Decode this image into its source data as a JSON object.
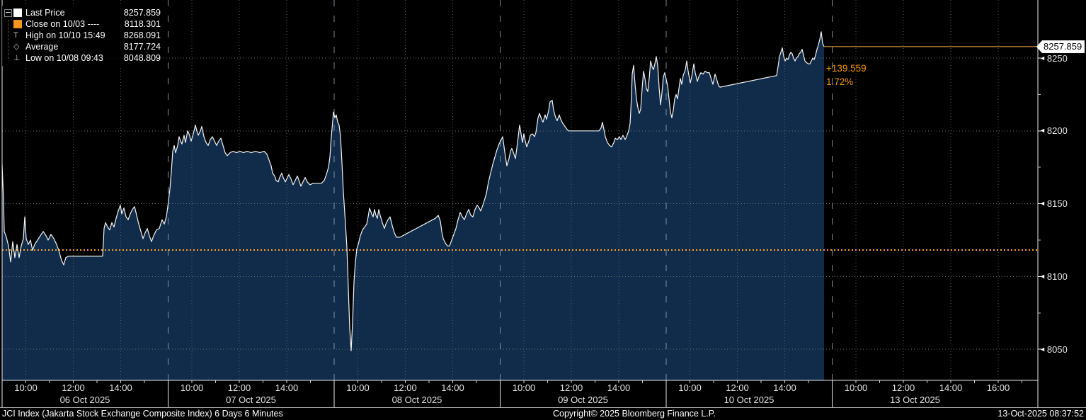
{
  "legend": {
    "items": [
      {
        "label": "Last Price",
        "value": "8257.859",
        "icon": "last-price-swatch",
        "swatch_color": "#ffffff"
      },
      {
        "label": "Close on 10/03 ----",
        "value": "8118.301",
        "icon": "close-swatch",
        "swatch_color": "#f7941d"
      },
      {
        "label": "High on 10/10 15:49",
        "value": "8268.091",
        "icon": "high-marker-icon",
        "glyph": "T"
      },
      {
        "label": "Average",
        "value": "8177.724",
        "icon": "average-marker-icon",
        "glyph": "◇"
      },
      {
        "label": "Low on 10/08 09:43",
        "value": "8048.809",
        "icon": "low-marker-icon",
        "glyph": "⊥"
      }
    ]
  },
  "annotation": {
    "change": "+139.559",
    "percent": "1.72%"
  },
  "flag": {
    "value": "8257.859"
  },
  "footer": {
    "left": "JCI Index (Jakarta Stock Exchange Composite Index) 6 Days 6 Minutes",
    "center": "Copyright© 2025 Bloomberg Finance L.P.",
    "right": "13-Oct-2025 08:37:52"
  },
  "colors": {
    "background": "#000000",
    "area_fill": "#112c4a",
    "price_line": "#f2f4f6",
    "close_dotted": "#ffa028",
    "last_price_line": "#d4913c",
    "annotation_orange": "#f79500",
    "h_grid": "#6b6f75",
    "v_grid": "#4e5a64",
    "day_boundary": "#92a2b4",
    "axis_white": "#e8e8e8",
    "legend_orange_swatch": "#f7941d"
  },
  "chart_data": {
    "type": "area",
    "title": "JCI Index (Jakarta Stock Exchange Composite Index) 6 Days 6 Minutes",
    "legend_position": "top-left",
    "grid": true,
    "ylim": [
      8028,
      8290
    ],
    "y_ticks": [
      8250,
      8200,
      8150,
      8100,
      8050
    ],
    "y_minor_ticks": [
      8225,
      8175,
      8125,
      8075
    ],
    "close_line_value": 8118.301,
    "stats": {
      "last_price": 8257.859,
      "close_10_03": 8118.301,
      "high_10_10_1549": 8268.091,
      "average": 8177.724,
      "low_10_08_0943": 8048.809,
      "net_change": 139.559,
      "pct_change": 1.72
    },
    "x_axis": {
      "days": [
        {
          "date": "06 Oct 2025",
          "times": [
            "10:00",
            "12:00",
            "14:00"
          ]
        },
        {
          "date": "07 Oct 2025",
          "times": [
            "10:00",
            "12:00",
            "14:00"
          ]
        },
        {
          "date": "08 Oct 2025",
          "times": [
            "10:00",
            "12:00",
            "14:00"
          ]
        },
        {
          "date": "09 Oct 2025",
          "times": [
            "10:00",
            "12:00",
            "14:00"
          ]
        },
        {
          "date": "10 Oct 2025",
          "times": [
            "10:00",
            "12:00",
            "14:00"
          ]
        },
        {
          "date": "13 Oct 2025",
          "times": [
            "10:00",
            "12:00",
            "14:00",
            "16:00"
          ]
        }
      ],
      "session_hours": "09:00-16:00"
    },
    "x_unit": "pixels from plot left edge; each trading day = 234.5px = 7 hours",
    "points": [
      [
        0,
        8177
      ],
      [
        2,
        8152
      ],
      [
        3,
        8131
      ],
      [
        6,
        8127
      ],
      [
        9,
        8121
      ],
      [
        12,
        8110
      ],
      [
        15,
        8124
      ],
      [
        18,
        8113
      ],
      [
        21,
        8122
      ],
      [
        24,
        8113
      ],
      [
        27,
        8121
      ],
      [
        30,
        8126
      ],
      [
        32,
        8141
      ],
      [
        34,
        8126
      ],
      [
        37,
        8122
      ],
      [
        40,
        8125
      ],
      [
        43,
        8118
      ],
      [
        46,
        8122
      ],
      [
        50,
        8125
      ],
      [
        54,
        8128
      ],
      [
        58,
        8131
      ],
      [
        62,
        8128
      ],
      [
        65,
        8125
      ],
      [
        69,
        8129
      ],
      [
        73,
        8126
      ],
      [
        77,
        8122
      ],
      [
        80,
        8118
      ],
      [
        84,
        8111
      ],
      [
        87,
        8108
      ],
      [
        90,
        8113
      ],
      [
        94,
        8114
      ],
      [
        142,
        8114
      ],
      [
        144,
        8133
      ],
      [
        146,
        8137
      ],
      [
        149,
        8134
      ],
      [
        152,
        8132
      ],
      [
        155,
        8137
      ],
      [
        158,
        8134
      ],
      [
        161,
        8140
      ],
      [
        164,
        8145
      ],
      [
        167,
        8149
      ],
      [
        169,
        8143
      ],
      [
        172,
        8147
      ],
      [
        175,
        8141
      ],
      [
        178,
        8139
      ],
      [
        181,
        8143
      ],
      [
        184,
        8146
      ],
      [
        187,
        8148
      ],
      [
        190,
        8142
      ],
      [
        193,
        8136
      ],
      [
        196,
        8131
      ],
      [
        199,
        8126
      ],
      [
        202,
        8130
      ],
      [
        205,
        8133
      ],
      [
        208,
        8128
      ],
      [
        211,
        8124
      ],
      [
        214,
        8128
      ],
      [
        218,
        8132
      ],
      [
        222,
        8133
      ],
      [
        226,
        8139
      ],
      [
        229,
        8136
      ],
      [
        232,
        8141
      ],
      [
        234,
        8148
      ],
      [
        237,
        8160
      ],
      [
        239,
        8172
      ],
      [
        241,
        8186
      ],
      [
        243,
        8190
      ],
      [
        245,
        8185
      ],
      [
        248,
        8190
      ],
      [
        250,
        8196
      ],
      [
        252,
        8193
      ],
      [
        254,
        8191
      ],
      [
        257,
        8197
      ],
      [
        259,
        8192
      ],
      [
        262,
        8200
      ],
      [
        264,
        8198
      ],
      [
        267,
        8193
      ],
      [
        270,
        8198
      ],
      [
        273,
        8204
      ],
      [
        275,
        8200
      ],
      [
        277,
        8197
      ],
      [
        280,
        8200
      ],
      [
        282,
        8203
      ],
      [
        285,
        8196
      ],
      [
        288,
        8192
      ],
      [
        291,
        8190
      ],
      [
        294,
        8194
      ],
      [
        297,
        8196
      ],
      [
        300,
        8193
      ],
      [
        303,
        8190
      ],
      [
        306,
        8193
      ],
      [
        309,
        8195
      ],
      [
        312,
        8190
      ],
      [
        315,
        8185
      ],
      [
        318,
        8183
      ],
      [
        322,
        8185
      ],
      [
        326,
        8186
      ],
      [
        331,
        8185
      ],
      [
        336,
        8186
      ],
      [
        341,
        8185
      ],
      [
        346,
        8186
      ],
      [
        352,
        8185
      ],
      [
        358,
        8186
      ],
      [
        364,
        8185
      ],
      [
        370,
        8186
      ],
      [
        374,
        8184
      ],
      [
        377,
        8180
      ],
      [
        380,
        8176
      ],
      [
        382,
        8171
      ],
      [
        385,
        8169
      ],
      [
        387,
        8166
      ],
      [
        390,
        8165
      ],
      [
        392,
        8168
      ],
      [
        395,
        8171
      ],
      [
        397,
        8168
      ],
      [
        400,
        8165
      ],
      [
        402,
        8167
      ],
      [
        405,
        8170
      ],
      [
        408,
        8167
      ],
      [
        411,
        8163
      ],
      [
        414,
        8166
      ],
      [
        417,
        8169
      ],
      [
        420,
        8165
      ],
      [
        422,
        8162
      ],
      [
        425,
        8165
      ],
      [
        428,
        8168
      ],
      [
        431,
        8165
      ],
      [
        435,
        8163
      ],
      [
        439,
        8164
      ],
      [
        445,
        8164
      ],
      [
        451,
        8164
      ],
      [
        455,
        8166
      ],
      [
        458,
        8170
      ],
      [
        461,
        8175
      ],
      [
        463,
        8182
      ],
      [
        465,
        8196
      ],
      [
        467,
        8207
      ],
      [
        468,
        8213
      ],
      [
        470,
        8209
      ],
      [
        472,
        8211
      ],
      [
        474,
        8206
      ],
      [
        476,
        8204
      ],
      [
        478,
        8196
      ],
      [
        480,
        8178
      ],
      [
        482,
        8158
      ],
      [
        485,
        8136
      ],
      [
        487,
        8120
      ],
      [
        489,
        8092
      ],
      [
        491,
        8064
      ],
      [
        493,
        8049
      ],
      [
        495,
        8068
      ],
      [
        497,
        8096
      ],
      [
        499,
        8110
      ],
      [
        501,
        8119
      ],
      [
        503,
        8122
      ],
      [
        506,
        8128
      ],
      [
        509,
        8132
      ],
      [
        512,
        8134
      ],
      [
        515,
        8136
      ],
      [
        517,
        8141
      ],
      [
        519,
        8147
      ],
      [
        522,
        8143
      ],
      [
        524,
        8141
      ],
      [
        526,
        8146
      ],
      [
        528,
        8142
      ],
      [
        530,
        8140
      ],
      [
        532,
        8146
      ],
      [
        534,
        8142
      ],
      [
        537,
        8137
      ],
      [
        540,
        8133
      ],
      [
        542,
        8136
      ],
      [
        545,
        8139
      ],
      [
        548,
        8141
      ],
      [
        551,
        8135
      ],
      [
        554,
        8130
      ],
      [
        557,
        8127
      ],
      [
        562,
        8127
      ],
      [
        612,
        8140
      ],
      [
        616,
        8142
      ],
      [
        619,
        8138
      ],
      [
        621,
        8131
      ],
      [
        623,
        8126
      ],
      [
        626,
        8123
      ],
      [
        629,
        8121
      ],
      [
        632,
        8121
      ],
      [
        635,
        8125
      ],
      [
        638,
        8129
      ],
      [
        641,
        8133
      ],
      [
        644,
        8139
      ],
      [
        647,
        8144
      ],
      [
        650,
        8141
      ],
      [
        653,
        8139
      ],
      [
        656,
        8143
      ],
      [
        659,
        8146
      ],
      [
        662,
        8142
      ],
      [
        665,
        8141
      ],
      [
        668,
        8146
      ],
      [
        671,
        8149
      ],
      [
        674,
        8147
      ],
      [
        676,
        8145
      ],
      [
        679,
        8149
      ],
      [
        681,
        8152
      ],
      [
        684,
        8157
      ],
      [
        687,
        8165
      ],
      [
        690,
        8171
      ],
      [
        693,
        8177
      ],
      [
        696,
        8182
      ],
      [
        699,
        8187
      ],
      [
        702,
        8191
      ],
      [
        705,
        8194
      ],
      [
        707,
        8196
      ],
      [
        709,
        8189
      ],
      [
        711,
        8182
      ],
      [
        713,
        8176
      ],
      [
        716,
        8181
      ],
      [
        718,
        8186
      ],
      [
        720,
        8188
      ],
      [
        723,
        8184
      ],
      [
        725,
        8181
      ],
      [
        727,
        8188
      ],
      [
        729,
        8196
      ],
      [
        731,
        8204
      ],
      [
        733,
        8198
      ],
      [
        735,
        8192
      ],
      [
        737,
        8198
      ],
      [
        739,
        8193
      ],
      [
        741,
        8189
      ],
      [
        744,
        8193
      ],
      [
        746,
        8197
      ],
      [
        749,
        8198
      ],
      [
        752,
        8196
      ],
      [
        754,
        8199
      ],
      [
        757,
        8209
      ],
      [
        759,
        8212
      ],
      [
        762,
        8208
      ],
      [
        764,
        8206
      ],
      [
        767,
        8211
      ],
      [
        769,
        8208
      ],
      [
        772,
        8214
      ],
      [
        774,
        8220
      ],
      [
        777,
        8221
      ],
      [
        779,
        8214
      ],
      [
        782,
        8209
      ],
      [
        784,
        8207
      ],
      [
        787,
        8211
      ],
      [
        789,
        8208
      ],
      [
        792,
        8205
      ],
      [
        795,
        8203
      ],
      [
        798,
        8201
      ],
      [
        800,
        8200
      ],
      [
        843,
        8200
      ],
      [
        846,
        8202
      ],
      [
        848,
        8206
      ],
      [
        850,
        8201
      ],
      [
        852,
        8196
      ],
      [
        855,
        8192
      ],
      [
        858,
        8190
      ],
      [
        861,
        8189
      ],
      [
        864,
        8192
      ],
      [
        866,
        8195
      ],
      [
        869,
        8194
      ],
      [
        872,
        8196
      ],
      [
        874,
        8194
      ],
      [
        877,
        8197
      ],
      [
        880,
        8194
      ],
      [
        882,
        8196
      ],
      [
        885,
        8200
      ],
      [
        887,
        8205
      ],
      [
        889,
        8224
      ],
      [
        890,
        8239
      ],
      [
        892,
        8245
      ],
      [
        894,
        8232
      ],
      [
        896,
        8222
      ],
      [
        898,
        8216
      ],
      [
        900,
        8212
      ],
      [
        902,
        8215
      ],
      [
        904,
        8229
      ],
      [
        906,
        8241
      ],
      [
        908,
        8236
      ],
      [
        910,
        8229
      ],
      [
        912,
        8227
      ],
      [
        914,
        8236
      ],
      [
        916,
        8248
      ],
      [
        918,
        8244
      ],
      [
        920,
        8242
      ],
      [
        922,
        8246
      ],
      [
        924,
        8251
      ],
      [
        926,
        8245
      ],
      [
        928,
        8230
      ],
      [
        930,
        8218
      ],
      [
        932,
        8226
      ],
      [
        934,
        8237
      ],
      [
        936,
        8240
      ],
      [
        940,
        8231
      ],
      [
        942,
        8222
      ],
      [
        944,
        8213
      ],
      [
        946,
        8209
      ],
      [
        948,
        8214
      ],
      [
        950,
        8222
      ],
      [
        952,
        8225
      ],
      [
        954,
        8222
      ],
      [
        956,
        8229
      ],
      [
        958,
        8236
      ],
      [
        960,
        8232
      ],
      [
        962,
        8238
      ],
      [
        965,
        8242
      ],
      [
        967,
        8248
      ],
      [
        969,
        8241
      ],
      [
        972,
        8233
      ],
      [
        974,
        8237
      ],
      [
        977,
        8246
      ],
      [
        979,
        8240
      ],
      [
        982,
        8234
      ],
      [
        984,
        8237
      ],
      [
        987,
        8240
      ],
      [
        990,
        8239
      ],
      [
        993,
        8241
      ],
      [
        996,
        8240
      ],
      [
        999,
        8240
      ],
      [
        1002,
        8235
      ],
      [
        1004,
        8232
      ],
      [
        1007,
        8239
      ],
      [
        1009,
        8236
      ],
      [
        1012,
        8231
      ],
      [
        1014,
        8230
      ],
      [
        1094,
        8238
      ],
      [
        1096,
        8244
      ],
      [
        1098,
        8251
      ],
      [
        1100,
        8254
      ],
      [
        1102,
        8257
      ],
      [
        1104,
        8251
      ],
      [
        1106,
        8248
      ],
      [
        1108,
        8250
      ],
      [
        1110,
        8249
      ],
      [
        1112,
        8252
      ],
      [
        1114,
        8254
      ],
      [
        1116,
        8253
      ],
      [
        1118,
        8250
      ],
      [
        1120,
        8248
      ],
      [
        1122,
        8250
      ],
      [
        1124,
        8251
      ],
      [
        1126,
        8253
      ],
      [
        1128,
        8254
      ],
      [
        1130,
        8256
      ],
      [
        1132,
        8252
      ],
      [
        1134,
        8248
      ],
      [
        1136,
        8247
      ],
      [
        1139,
        8246
      ],
      [
        1141,
        8246
      ],
      [
        1143,
        8248
      ],
      [
        1145,
        8250
      ],
      [
        1147,
        8249
      ],
      [
        1149,
        8252
      ],
      [
        1151,
        8256
      ],
      [
        1153,
        8259
      ],
      [
        1155,
        8263
      ],
      [
        1157,
        8268.09
      ],
      [
        1159,
        8260
      ],
      [
        1161,
        8257.86
      ]
    ]
  }
}
